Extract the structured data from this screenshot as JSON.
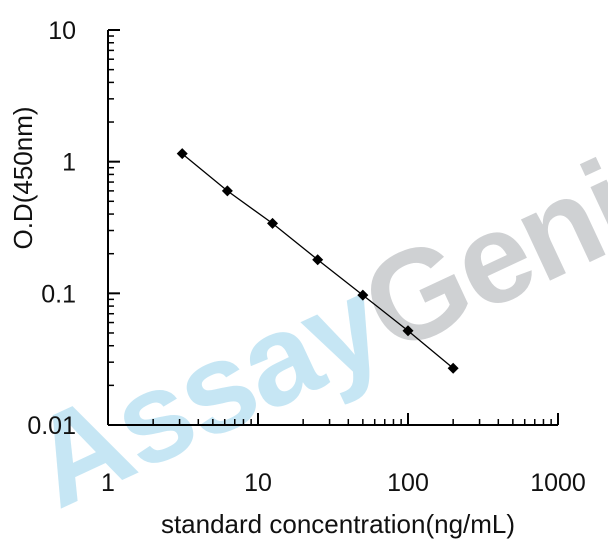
{
  "watermark": {
    "part1": "Assay",
    "part2": "Genie",
    "color1": "#b9e1f2",
    "color2": "#c4c6c9"
  },
  "chart_data": {
    "type": "scatter",
    "title": "",
    "xlabel": "standard concentration(ng/mL)",
    "ylabel": "O.D(450nm)",
    "xscale": "log",
    "yscale": "log",
    "xlim": [
      1,
      1000
    ],
    "ylim": [
      0.01,
      10
    ],
    "x_ticks": [
      1,
      10,
      100,
      1000
    ],
    "x_tick_labels": [
      "1",
      "10",
      "100",
      "1000"
    ],
    "y_ticks": [
      0.01,
      0.1,
      1,
      10
    ],
    "y_tick_labels": [
      "0.01",
      "0.1",
      "1",
      "10"
    ],
    "grid": false,
    "legend": "none",
    "point_color": "#000000",
    "line_color": "#000000",
    "series": [
      {
        "x": [
          3.125,
          6.25,
          12.5,
          25,
          50,
          100,
          200
        ],
        "y": [
          1.15,
          0.6,
          0.34,
          0.18,
          0.097,
          0.052,
          0.027
        ]
      }
    ]
  }
}
